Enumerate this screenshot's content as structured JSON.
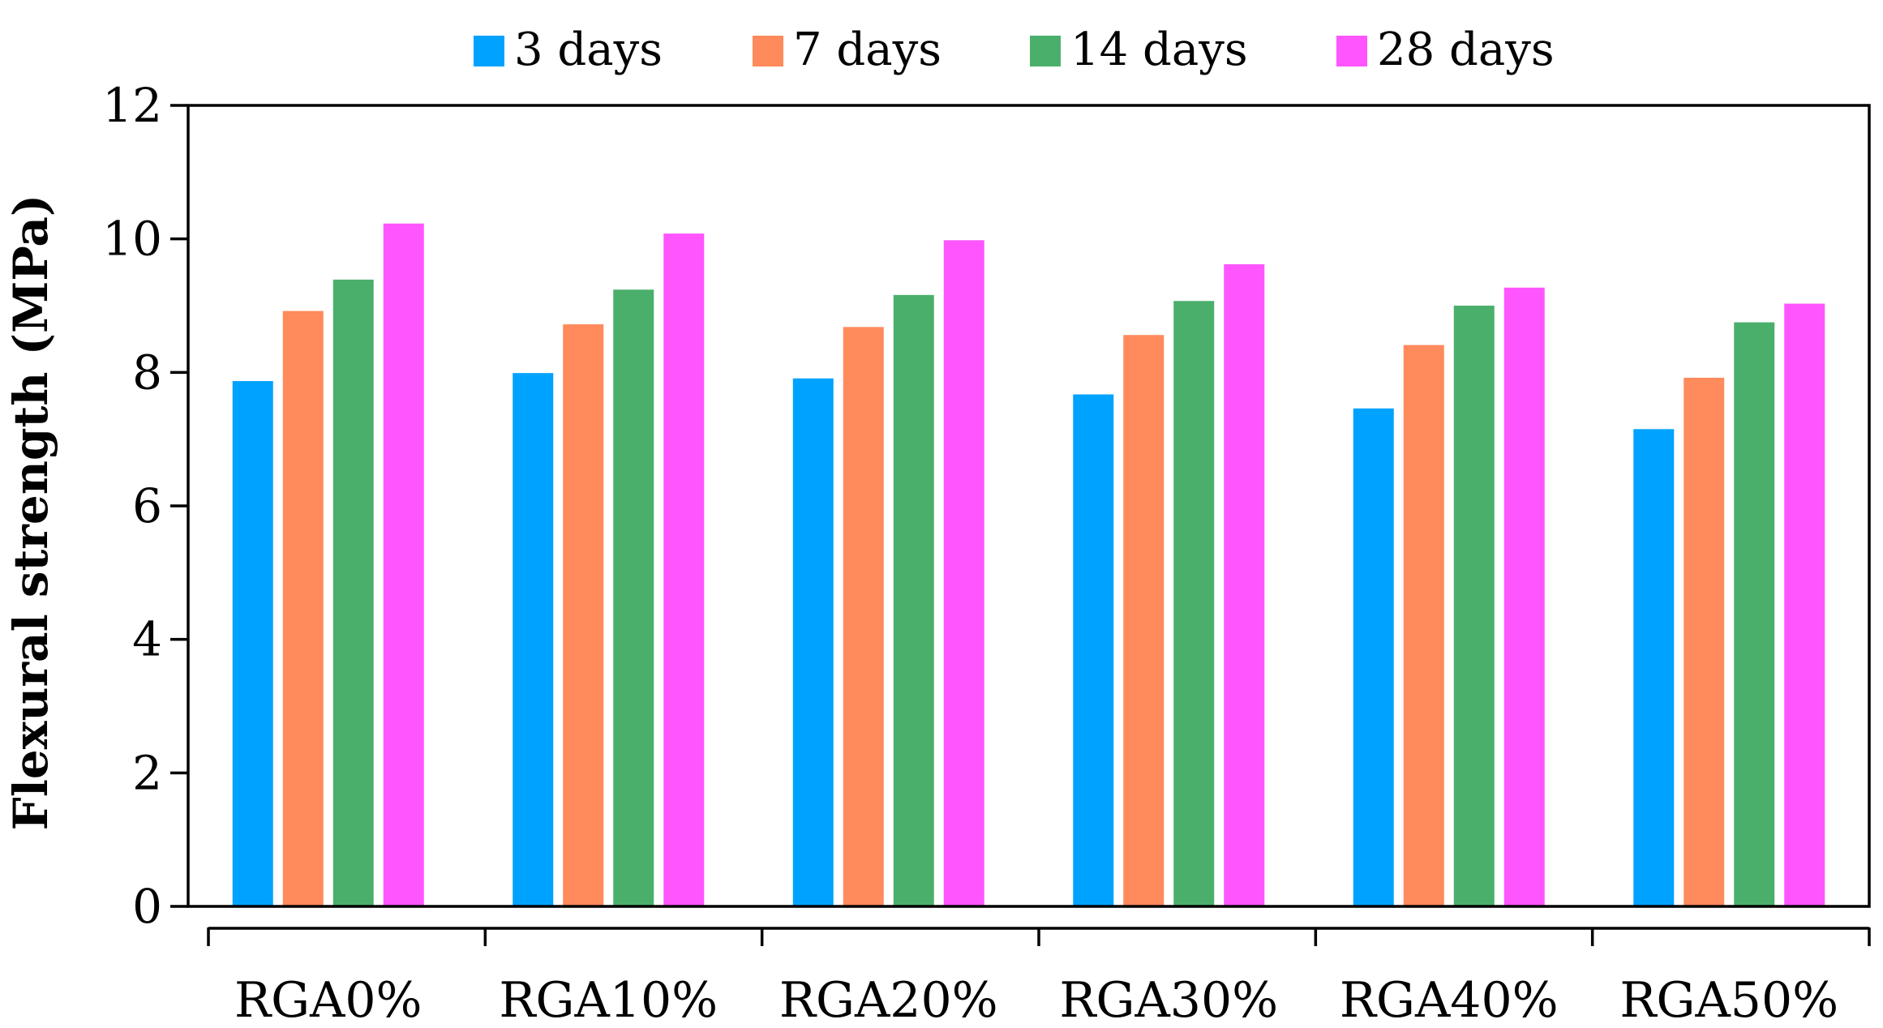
{
  "chart_data": {
    "type": "bar",
    "title": "",
    "xlabel": "",
    "ylabel": "Flexural strength (MPa)",
    "ylim": [
      0,
      12
    ],
    "yticks": [
      0,
      2,
      4,
      6,
      8,
      10,
      12
    ],
    "grid": false,
    "legend_position": "top",
    "categories": [
      "RGA0%",
      "RGA10%",
      "RGA20%",
      "RGA30%",
      "RGA40%",
      "RGA50%"
    ],
    "series": [
      {
        "name": "3 days",
        "color": "#00A2FF",
        "values": [
          7.87,
          7.99,
          7.91,
          7.67,
          7.46,
          7.15
        ]
      },
      {
        "name": "7 days",
        "color": "#FF8A5B",
        "values": [
          8.92,
          8.72,
          8.68,
          8.56,
          8.41,
          7.92
        ]
      },
      {
        "name": "14 days",
        "color": "#4BAF6C",
        "values": [
          9.39,
          9.24,
          9.16,
          9.07,
          9.0,
          8.75
        ]
      },
      {
        "name": "28 days",
        "color": "#FF55FF",
        "values": [
          10.23,
          10.08,
          9.98,
          9.62,
          9.27,
          9.03
        ]
      }
    ]
  }
}
